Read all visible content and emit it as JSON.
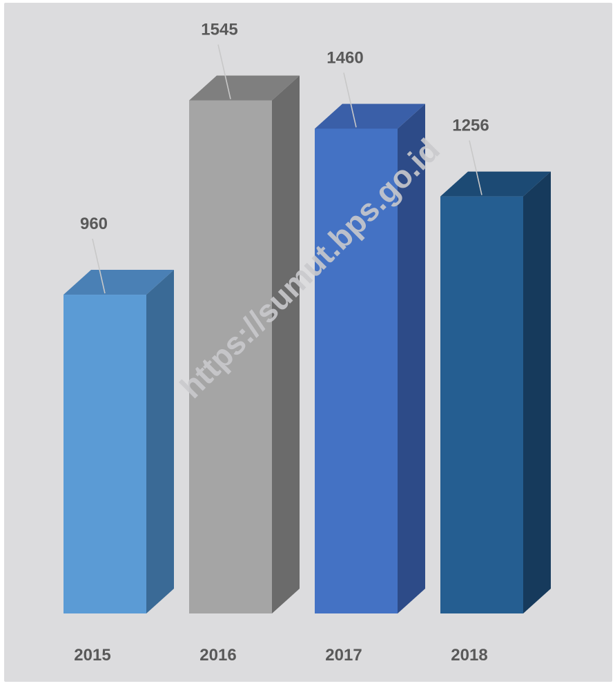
{
  "watermark": "https://sumut.bps.go.id",
  "colors": {
    "background": "#dcdcde",
    "label_text": "#595959",
    "leader_line": "#c8c8c8",
    "watermark": "#c9c9cc"
  },
  "chart_data": {
    "type": "bar",
    "style": "3d-column",
    "title": "",
    "xlabel": "",
    "ylabel": "",
    "categories": [
      "2015",
      "2016",
      "2017",
      "2018"
    ],
    "values": [
      960,
      1545,
      1460,
      1256
    ],
    "data_labels": [
      "960",
      "1545",
      "1460",
      "1256"
    ],
    "bar_colors": [
      {
        "front": "#5b9bd5",
        "side": "#3a6a96",
        "top": "#4a80b5"
      },
      {
        "front": "#a5a5a5",
        "side": "#6b6b6b",
        "top": "#7f7f7f"
      },
      {
        "front": "#4472c4",
        "side": "#2d4b88",
        "top": "#3a5fa8"
      },
      {
        "front": "#255e91",
        "side": "#163a5c",
        "top": "#1c4a74"
      }
    ],
    "ylim": [
      0,
      1600
    ],
    "grid": false,
    "legend": "none"
  }
}
